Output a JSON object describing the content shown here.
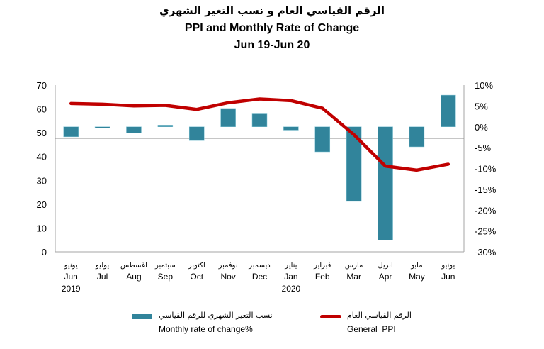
{
  "chart_data": {
    "type": "bar+line",
    "title_ar": "الرقم القياسي العام و نسب التغير الشهري",
    "title": "PPI and Monthly Rate of Change",
    "subtitle": "Jun 19-Jun 20",
    "categories": [
      "Jun",
      "Jul",
      "Aug",
      "Sep",
      "Oct",
      "Nov",
      "Dec",
      "Jan",
      "Feb",
      "Mar",
      "Apr",
      "May",
      "Jun"
    ],
    "categories_ar": [
      "يونيو",
      "يوليو",
      "اغسطس",
      "سبتمبر",
      "اكتوبر",
      "نوفمبر",
      "ديسمبر",
      "يناير",
      "فبراير",
      "مارس",
      "ابريل",
      "مايو",
      "يونيو"
    ],
    "year_labels": {
      "0": "2019",
      "7": "2020"
    },
    "left_axis": {
      "min": 0,
      "max": 70,
      "ticks": [
        "0",
        "10",
        "20",
        "30",
        "40",
        "50",
        "60",
        "70"
      ]
    },
    "right_axis": {
      "min": -30,
      "max": 10,
      "unit": "%",
      "ticks": [
        "-30%",
        "-25%",
        "-20%",
        "-15%",
        "-10%",
        "-5%",
        "0%",
        "5%",
        "10%"
      ]
    },
    "reference_line_left": 47.7,
    "grid": false,
    "legend_position": "bottom",
    "series": [
      {
        "name": "Monthly rate of change%",
        "name_ar": "نسب التغير الشهري للرقم القياسي",
        "type": "bar",
        "axis": "right",
        "color": "#31849B",
        "values": [
          -2.4,
          -0.1,
          -1.5,
          0.4,
          -3.3,
          4.4,
          3.1,
          -0.8,
          -6.0,
          -17.9,
          -27.2,
          -4.8,
          7.6
        ]
      },
      {
        "name": "General  PPI",
        "name_ar": "الرقم القياسي العام",
        "type": "line",
        "axis": "left",
        "color": "#C00000",
        "values": [
          62.3,
          62.0,
          61.3,
          61.5,
          59.8,
          62.6,
          64.2,
          63.5,
          60.3,
          49.2,
          36.0,
          34.3,
          36.8
        ]
      }
    ]
  }
}
